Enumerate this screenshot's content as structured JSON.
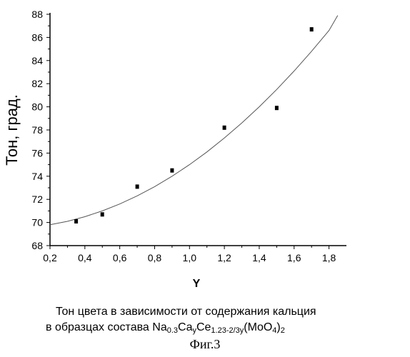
{
  "chart_data": {
    "type": "scatter",
    "xlabel": "Y",
    "ylabel": "Тон, град.",
    "xlim": [
      0.2,
      1.9
    ],
    "ylim": [
      68,
      88
    ],
    "xticks": [
      0.2,
      0.4,
      0.6,
      0.8,
      1.0,
      1.2,
      1.4,
      1.6,
      1.8
    ],
    "xtick_labels": [
      "0,2",
      "0,4",
      "0,6",
      "0,8",
      "1,0",
      "1,2",
      "1,4",
      "1,6",
      "1,8"
    ],
    "yticks": [
      68,
      70,
      72,
      74,
      76,
      78,
      80,
      82,
      84,
      86,
      88
    ],
    "ytick_labels": [
      "68",
      "70",
      "72",
      "74",
      "76",
      "78",
      "80",
      "82",
      "84",
      "86",
      "88"
    ],
    "grid": false,
    "series": [
      {
        "x": [
          0.35,
          0.5,
          0.7,
          0.9,
          1.2,
          1.5,
          1.7
        ],
        "y": [
          70.1,
          70.7,
          73.1,
          74.5,
          78.2,
          79.9,
          86.7
        ]
      }
    ],
    "fit_curve": {
      "x": [
        0.2,
        0.3,
        0.4,
        0.5,
        0.6,
        0.7,
        0.8,
        0.9,
        1.0,
        1.1,
        1.2,
        1.3,
        1.4,
        1.5,
        1.6,
        1.7,
        1.8,
        1.85
      ],
      "y": [
        69.8,
        70.1,
        70.5,
        71.0,
        71.6,
        72.3,
        73.1,
        74.0,
        75.0,
        76.1,
        77.3,
        78.6,
        80.0,
        81.5,
        83.1,
        84.8,
        86.6,
        87.9
      ]
    }
  },
  "caption": {
    "line1": "Тон цвета в зависимости от содержания кальция",
    "line2_prefix": "в образцах состава Na",
    "line2_sub1": "0.3",
    "line2_mid1": "Ca",
    "line2_sub2": "y",
    "line2_mid2": "Ce",
    "line2_sub3": "1.23-2/3y",
    "line2_mid3": "(MoO",
    "line2_sub4": "4",
    "line2_suffix": ")",
    "line2_sub5": "2"
  },
  "figure_label": "Фиг.3"
}
